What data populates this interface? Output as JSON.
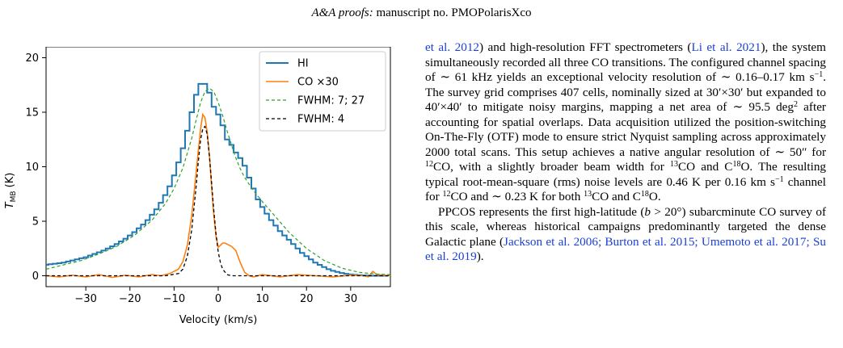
{
  "header": {
    "journal": "A&A proofs:",
    "manuscript": "manuscript no. PMOPolarisXco"
  },
  "chart_data": {
    "type": "line",
    "xlabel": "Velocity (km/s)",
    "ylabel": "T_MB (K)",
    "xlim": [
      -39,
      39
    ],
    "ylim": [
      -1,
      21
    ],
    "xticks": [
      -30,
      -20,
      -10,
      0,
      10,
      20,
      30
    ],
    "yticks": [
      0,
      5,
      10,
      15,
      20
    ],
    "legend_position": "top-right",
    "legend": [
      "HI",
      "CO ×30",
      "FWHM: 7; 27",
      "FWHM: 4"
    ],
    "colors": {
      "hi": "#1f77b4",
      "co": "#ff7f0e",
      "fit_wide": "#2ca02c",
      "fit_narrow": "#000000"
    },
    "series": [
      {
        "name": "HI",
        "style": "step",
        "x": [
          -39,
          -38,
          -37,
          -36,
          -35,
          -34,
          -33,
          -32,
          -31,
          -30,
          -29,
          -28,
          -27,
          -26,
          -25,
          -24,
          -23,
          -22,
          -21,
          -20,
          -19,
          -18,
          -17,
          -16,
          -15,
          -14,
          -13,
          -12,
          -11,
          -10,
          -9,
          -8,
          -7,
          -6,
          -5,
          -4,
          -3,
          -2,
          -1,
          0,
          1,
          2,
          3,
          4,
          5,
          6,
          7,
          8,
          9,
          10,
          11,
          12,
          13,
          14,
          15,
          16,
          17,
          18,
          19,
          20,
          21,
          22,
          23,
          24,
          25,
          26,
          27,
          28,
          29,
          30,
          31,
          32,
          33,
          34,
          35,
          36,
          37,
          38
        ],
        "y": [
          1.0,
          1.05,
          1.1,
          1.15,
          1.2,
          1.3,
          1.4,
          1.5,
          1.6,
          1.7,
          1.85,
          2.0,
          2.15,
          2.3,
          2.5,
          2.7,
          2.9,
          3.15,
          3.4,
          3.7,
          4.0,
          4.35,
          4.7,
          5.1,
          5.6,
          6.1,
          6.7,
          7.4,
          8.2,
          9.2,
          10.4,
          11.7,
          13.3,
          15.0,
          16.6,
          17.6,
          17.6,
          16.8,
          15.5,
          14.8,
          13.8,
          12.5,
          12.0,
          11.3,
          10.8,
          10.1,
          9.0,
          8.0,
          7.0,
          6.3,
          5.7,
          5.1,
          4.6,
          4.1,
          3.7,
          3.3,
          2.9,
          2.5,
          2.1,
          1.8,
          1.5,
          1.2,
          1.0,
          0.8,
          0.6,
          0.45,
          0.35,
          0.25,
          0.18,
          0.12,
          0.08,
          0.05,
          0.03,
          0.02,
          0.0,
          0.0,
          0.0,
          0.0
        ]
      },
      {
        "name": "CO ×30",
        "style": "line",
        "x": [
          -39,
          -36,
          -33,
          -30,
          -27,
          -24,
          -21,
          -18,
          -15,
          -13,
          -11,
          -9,
          -8,
          -7,
          -6,
          -5,
          -4.5,
          -4,
          -3.5,
          -3,
          -2.5,
          -2,
          -1.5,
          -1,
          -0.5,
          0,
          0.5,
          1,
          1.5,
          2,
          3,
          4,
          5,
          6,
          7,
          8,
          10,
          14,
          18,
          22,
          26,
          30,
          33,
          34,
          35,
          36,
          39
        ],
        "y": [
          0.0,
          -0.1,
          0.05,
          -0.1,
          0.1,
          -0.15,
          0.05,
          -0.1,
          0.1,
          0.0,
          0.2,
          0.6,
          1.3,
          2.8,
          5.5,
          9.5,
          11.5,
          13.5,
          14.8,
          14.5,
          13.2,
          11.0,
          8.2,
          5.6,
          3.6,
          2.6,
          2.8,
          3.0,
          3.0,
          2.9,
          2.7,
          2.3,
          1.2,
          0.3,
          0.0,
          -0.1,
          0.1,
          -0.1,
          0.1,
          0.0,
          -0.1,
          0.05,
          0.0,
          -0.1,
          0.4,
          0.1,
          0.0
        ]
      },
      {
        "name": "FWHM: 7; 27",
        "style": "dashed",
        "x": [
          -39,
          -35,
          -31,
          -27,
          -23,
          -19,
          -15,
          -12,
          -10,
          -8,
          -6,
          -5,
          -4,
          -3,
          -2,
          -1,
          0,
          1,
          2,
          3,
          4,
          5,
          6,
          8,
          10,
          13,
          16,
          20,
          24,
          28,
          32,
          36,
          39
        ],
        "y": [
          0.6,
          1.0,
          1.4,
          2.0,
          2.7,
          3.7,
          5.1,
          6.6,
          8.0,
          9.9,
          12.6,
          14.3,
          15.9,
          16.9,
          17.2,
          16.9,
          15.9,
          14.7,
          13.3,
          12.0,
          10.8,
          9.8,
          9.0,
          7.8,
          6.8,
          5.4,
          4.0,
          2.5,
          1.4,
          0.7,
          0.3,
          0.15,
          0.1
        ]
      },
      {
        "name": "FWHM: 4",
        "style": "dashed",
        "x": [
          -39,
          -12,
          -9,
          -8,
          -7,
          -6,
          -5,
          -4.5,
          -4,
          -3.5,
          -3,
          -2.5,
          -2,
          -1.5,
          -1,
          -0.5,
          0,
          0.5,
          1,
          2,
          3,
          39
        ],
        "y": [
          0.0,
          0.0,
          0.2,
          0.6,
          1.8,
          4.2,
          8.2,
          10.5,
          12.5,
          13.5,
          13.7,
          13.0,
          11.0,
          8.5,
          6.0,
          3.8,
          2.2,
          1.2,
          0.6,
          0.1,
          0.0,
          0.0
        ]
      }
    ]
  },
  "body": {
    "p1": [
      {
        "t": "et al. 2012",
        "c": true
      },
      {
        "t": ") and high-resolution FFT spectrometers ("
      },
      {
        "t": "Li et al. 2021",
        "c": true
      },
      {
        "t": "), the system simultaneously recorded all three CO transitions. The configured channel spacing of ∼ 61 kHz yields an exceptional velocity resolution of ∼ 0.16–0.17 km s"
      },
      {
        "t": "−1",
        "sup": true
      },
      {
        "t": ". The survey grid comprises 407 cells, nominally sized at 30′×30′ but expanded to 40′×40′ to mitigate noisy margins, mapping a net area of ∼ 95.5 deg"
      },
      {
        "t": "2",
        "sup": true
      },
      {
        "t": " after accounting for spatial overlaps. Data acquisition utilized the position-switching On-The-Fly (OTF) mode to ensure strict Nyquist sampling across approximately 2000 total scans. This setup achieves a native angular resolution of ∼ 50″ for "
      },
      {
        "t": "12",
        "sup": true
      },
      {
        "t": "CO, with a slightly broader beam width for "
      },
      {
        "t": "13",
        "sup": true
      },
      {
        "t": "CO and C"
      },
      {
        "t": "18",
        "sup": true
      },
      {
        "t": "O. The resulting typical root-mean-square (rms) noise levels are 0.46 K per 0.16 km s"
      },
      {
        "t": "−1",
        "sup": true
      },
      {
        "t": " channel for "
      },
      {
        "t": "12",
        "sup": true
      },
      {
        "t": "CO and ∼ 0.23 K for both "
      },
      {
        "t": "13",
        "sup": true
      },
      {
        "t": "CO and C"
      },
      {
        "t": "18",
        "sup": true
      },
      {
        "t": "O."
      }
    ],
    "p2": [
      {
        "t": "PPCOS represents the first high-latitude ("
      },
      {
        "t": "b",
        "i": true
      },
      {
        "t": " > 20°) subarcminute CO survey of this scale, whereas historical campaigns predominantly targeted the dense Galactic plane ("
      },
      {
        "t": "Jackson et al. 2006; Burton et al. 2015; Umemoto et al. 2017; Su et al. 2019",
        "c": true
      },
      {
        "t": ")."
      }
    ]
  }
}
